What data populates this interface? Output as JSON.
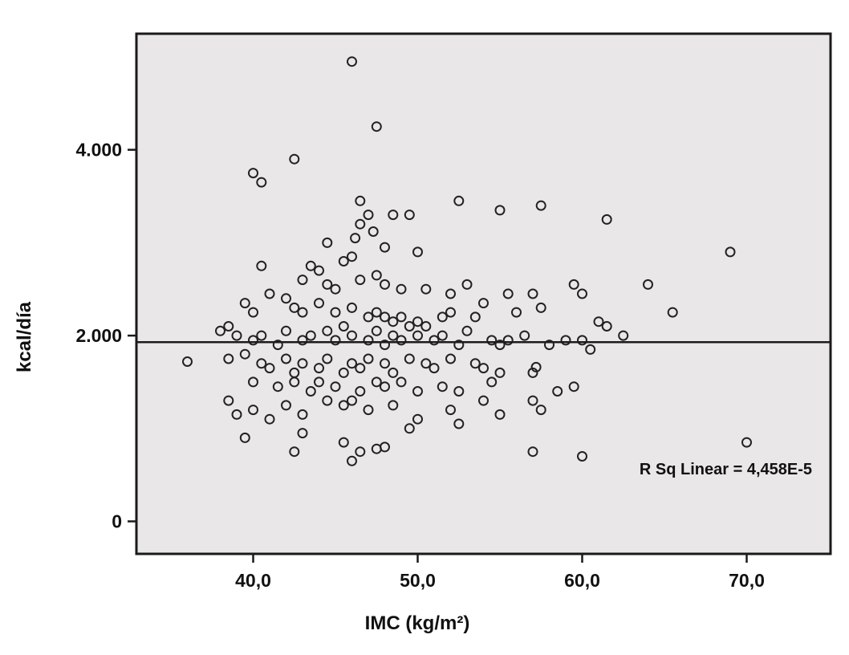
{
  "colors": {
    "plot_background": "#e9e7e7",
    "point_stroke": "#222222",
    "line": "#1c1c1c",
    "text": "#111111"
  },
  "chart_data": {
    "type": "scatter",
    "title": "",
    "xlabel": "IMC (kg/m²)",
    "ylabel": "kcal/día",
    "annotation": "R Sq Linear = 4,458E-5",
    "xlim": [
      32.9,
      75.1
    ],
    "ylim": [
      -350,
      5250
    ],
    "x_tick_values": [
      40,
      50,
      60,
      70
    ],
    "x_tick_labels": [
      "40,0",
      "50,0",
      "60,0",
      "70,0"
    ],
    "y_tick_values": [
      0,
      2000,
      4000
    ],
    "y_tick_labels": [
      "0",
      "2.000",
      "4.000"
    ],
    "grid": false,
    "legend": false,
    "fit_line": {
      "type": "horizontal",
      "y": 1930
    },
    "points": [
      [
        46,
        4950
      ],
      [
        47.5,
        4250
      ],
      [
        42.5,
        3900
      ],
      [
        40,
        3750
      ],
      [
        40.5,
        3650
      ],
      [
        46.5,
        3450
      ],
      [
        52.5,
        3450
      ],
      [
        47,
        3300
      ],
      [
        48.5,
        3300
      ],
      [
        49.5,
        3300
      ],
      [
        55,
        3350
      ],
      [
        57.5,
        3400
      ],
      [
        61.5,
        3250
      ],
      [
        46.5,
        3200
      ],
      [
        47.3,
        3120
      ],
      [
        44.5,
        3000
      ],
      [
        48,
        2950
      ],
      [
        50,
        2900
      ],
      [
        69,
        2900
      ],
      [
        46.2,
        3050
      ],
      [
        43.5,
        2750
      ],
      [
        44,
        2700
      ],
      [
        45.5,
        2800
      ],
      [
        46,
        2850
      ],
      [
        43,
        2600
      ],
      [
        44.5,
        2550
      ],
      [
        45,
        2500
      ],
      [
        46.5,
        2600
      ],
      [
        47.5,
        2650
      ],
      [
        48,
        2550
      ],
      [
        49,
        2500
      ],
      [
        50.5,
        2500
      ],
      [
        52,
        2450
      ],
      [
        53,
        2550
      ],
      [
        55.5,
        2450
      ],
      [
        57,
        2450
      ],
      [
        59.5,
        2550
      ],
      [
        60,
        2450
      ],
      [
        64,
        2550
      ],
      [
        40.5,
        2750
      ],
      [
        41,
        2450
      ],
      [
        42,
        2400
      ],
      [
        39.5,
        2350
      ],
      [
        40,
        2250
      ],
      [
        42.5,
        2300
      ],
      [
        43,
        2250
      ],
      [
        44,
        2350
      ],
      [
        45,
        2250
      ],
      [
        46,
        2300
      ],
      [
        47,
        2200
      ],
      [
        47.5,
        2250
      ],
      [
        48,
        2200
      ],
      [
        48.5,
        2150
      ],
      [
        49,
        2200
      ],
      [
        50,
        2150
      ],
      [
        50.5,
        2100
      ],
      [
        51.5,
        2200
      ],
      [
        52,
        2250
      ],
      [
        53.5,
        2200
      ],
      [
        54,
        2350
      ],
      [
        56,
        2250
      ],
      [
        57.5,
        2300
      ],
      [
        65.5,
        2250
      ],
      [
        61,
        2150
      ],
      [
        61.5,
        2100
      ],
      [
        38,
        2050
      ],
      [
        38.5,
        2100
      ],
      [
        39,
        2000
      ],
      [
        40,
        1950
      ],
      [
        40.5,
        2000
      ],
      [
        41.5,
        1900
      ],
      [
        42,
        2050
      ],
      [
        43,
        1950
      ],
      [
        43.5,
        2000
      ],
      [
        44.5,
        2050
      ],
      [
        45,
        1950
      ],
      [
        45.5,
        2100
      ],
      [
        46,
        2000
      ],
      [
        47,
        1950
      ],
      [
        47.5,
        2050
      ],
      [
        48,
        1900
      ],
      [
        48.5,
        2000
      ],
      [
        49,
        1950
      ],
      [
        49.5,
        2100
      ],
      [
        50,
        2000
      ],
      [
        51,
        1950
      ],
      [
        51.5,
        2000
      ],
      [
        52.5,
        1900
      ],
      [
        53,
        2050
      ],
      [
        54.5,
        1950
      ],
      [
        55,
        1900
      ],
      [
        55.5,
        1950
      ],
      [
        56.5,
        2000
      ],
      [
        58,
        1900
      ],
      [
        59,
        1950
      ],
      [
        60,
        1950
      ],
      [
        60.5,
        1850
      ],
      [
        62.5,
        2000
      ],
      [
        36,
        1720
      ],
      [
        38.5,
        1750
      ],
      [
        39.5,
        1800
      ],
      [
        40.5,
        1700
      ],
      [
        41,
        1650
      ],
      [
        42,
        1750
      ],
      [
        42.5,
        1600
      ],
      [
        43,
        1700
      ],
      [
        44,
        1650
      ],
      [
        44.5,
        1750
      ],
      [
        45.5,
        1600
      ],
      [
        46,
        1700
      ],
      [
        46.5,
        1650
      ],
      [
        47,
        1750
      ],
      [
        48,
        1700
      ],
      [
        48.5,
        1600
      ],
      [
        49.5,
        1750
      ],
      [
        50.5,
        1700
      ],
      [
        51,
        1650
      ],
      [
        52,
        1750
      ],
      [
        53.5,
        1700
      ],
      [
        54,
        1650
      ],
      [
        55,
        1600
      ],
      [
        57,
        1600
      ],
      [
        57.2,
        1660
      ],
      [
        40,
        1500
      ],
      [
        41.5,
        1450
      ],
      [
        42.5,
        1500
      ],
      [
        43.5,
        1400
      ],
      [
        44,
        1500
      ],
      [
        45,
        1450
      ],
      [
        46.5,
        1400
      ],
      [
        47.5,
        1500
      ],
      [
        48,
        1450
      ],
      [
        49,
        1500
      ],
      [
        50,
        1400
      ],
      [
        51.5,
        1450
      ],
      [
        52.5,
        1400
      ],
      [
        54.5,
        1500
      ],
      [
        58.5,
        1400
      ],
      [
        59.5,
        1450
      ],
      [
        38.5,
        1300
      ],
      [
        39,
        1150
      ],
      [
        40,
        1200
      ],
      [
        41,
        1100
      ],
      [
        42,
        1250
      ],
      [
        43,
        1150
      ],
      [
        44.5,
        1300
      ],
      [
        45.5,
        1250
      ],
      [
        46,
        1300
      ],
      [
        47,
        1200
      ],
      [
        48.5,
        1250
      ],
      [
        50,
        1100
      ],
      [
        52,
        1200
      ],
      [
        54,
        1300
      ],
      [
        55,
        1150
      ],
      [
        57,
        1300
      ],
      [
        57.5,
        1200
      ],
      [
        39.5,
        900
      ],
      [
        42.5,
        750
      ],
      [
        43,
        950
      ],
      [
        45.5,
        850
      ],
      [
        46,
        650
      ],
      [
        46.5,
        750
      ],
      [
        48,
        800
      ],
      [
        49.5,
        1000
      ],
      [
        47.5,
        780
      ],
      [
        57,
        750
      ],
      [
        60,
        700
      ],
      [
        70,
        850
      ],
      [
        52.5,
        1050
      ]
    ]
  }
}
